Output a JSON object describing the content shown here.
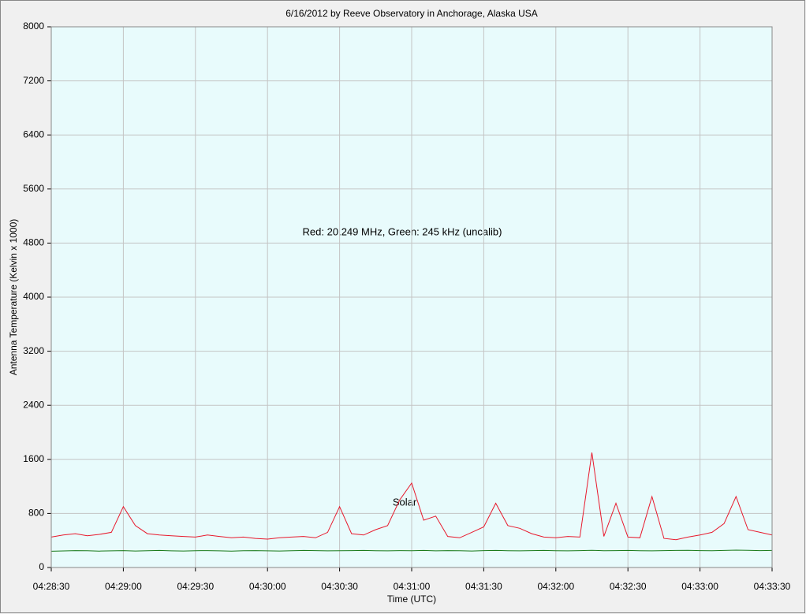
{
  "chart_data": {
    "type": "line",
    "title": "6/16/2012  by  Reeve Observatory  in  Anchorage, Alaska  USA",
    "annotations": [
      "Red: 20.249 MHz, Green: 245 kHz (uncalib)",
      "Solar"
    ],
    "xlabel": "Time (UTC)",
    "ylabel": "Antenna Temperature (Kelvin x 1000)",
    "x": [
      "04:28:30",
      "04:28:35",
      "04:28:40",
      "04:28:45",
      "04:28:50",
      "04:28:55",
      "04:29:00",
      "04:29:05",
      "04:29:10",
      "04:29:15",
      "04:29:20",
      "04:29:25",
      "04:29:30",
      "04:29:35",
      "04:29:40",
      "04:29:45",
      "04:29:50",
      "04:29:55",
      "04:30:00",
      "04:30:05",
      "04:30:10",
      "04:30:15",
      "04:30:20",
      "04:30:25",
      "04:30:30",
      "04:30:35",
      "04:30:40",
      "04:30:45",
      "04:30:50",
      "04:30:55",
      "04:31:00",
      "04:31:05",
      "04:31:10",
      "04:31:15",
      "04:31:20",
      "04:31:25",
      "04:31:30",
      "04:31:35",
      "04:31:40",
      "04:31:45",
      "04:31:50",
      "04:31:55",
      "04:32:00",
      "04:32:05",
      "04:32:10",
      "04:32:15",
      "04:32:20",
      "04:32:25",
      "04:32:30",
      "04:32:35",
      "04:32:40",
      "04:32:45",
      "04:32:50",
      "04:32:55",
      "04:33:00",
      "04:33:05",
      "04:33:10",
      "04:33:15",
      "04:33:20",
      "04:33:25",
      "04:33:30"
    ],
    "series": [
      {
        "color": "#e8192c",
        "values": [
          450,
          480,
          500,
          470,
          490,
          520,
          900,
          620,
          500,
          480,
          470,
          460,
          450,
          480,
          460,
          440,
          450,
          430,
          420,
          440,
          450,
          460,
          440,
          520,
          900,
          500,
          480,
          560,
          620,
          1000,
          1250,
          700,
          760,
          460,
          440,
          520,
          600,
          950,
          620,
          580,
          500,
          450,
          440,
          460,
          450,
          1700,
          460,
          950,
          450,
          440,
          1050,
          430,
          410,
          450,
          480,
          520,
          650,
          1050,
          560,
          520,
          480
        ]
      },
      {
        "color": "#1a7a1a",
        "values": [
          240,
          245,
          250,
          248,
          242,
          246,
          250,
          244,
          248,
          252,
          246,
          244,
          248,
          250,
          246,
          242,
          248,
          250,
          246,
          244,
          248,
          252,
          250,
          246,
          248,
          250,
          252,
          248,
          246,
          250,
          248,
          252,
          246,
          250,
          248,
          244,
          250,
          252,
          248,
          246,
          250,
          252,
          248,
          246,
          250,
          254,
          248,
          250,
          252,
          248,
          246,
          250,
          252,
          254,
          250,
          248,
          252,
          256,
          254,
          250,
          252
        ]
      }
    ],
    "ylim": [
      0,
      8000
    ],
    "yticks": [
      0,
      800,
      1600,
      2400,
      3200,
      4000,
      4800,
      5600,
      6400,
      7200,
      8000
    ],
    "xticks": [
      "04:28:30",
      "04:29:00",
      "04:29:30",
      "04:30:00",
      "04:30:30",
      "04:31:00",
      "04:31:30",
      "04:32:00",
      "04:32:30",
      "04:33:00",
      "04:33:30"
    ],
    "grid": true
  }
}
